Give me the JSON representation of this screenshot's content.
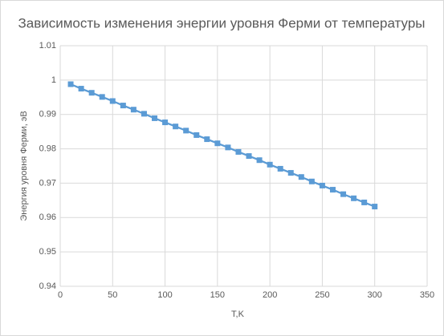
{
  "chart_data": {
    "type": "line",
    "title": "Зависимость изменения энергии уровня Ферми от температуры",
    "x_label": "T,K",
    "y_label": "Энергия уровня Ферми, эВ",
    "x": [
      10,
      20,
      30,
      40,
      50,
      60,
      70,
      80,
      90,
      100,
      110,
      120,
      130,
      140,
      150,
      160,
      170,
      180,
      190,
      200,
      210,
      220,
      230,
      240,
      250,
      260,
      270,
      280,
      290,
      300
    ],
    "values": [
      0.9988,
      0.9975,
      0.9963,
      0.9951,
      0.9939,
      0.9926,
      0.9914,
      0.9902,
      0.9889,
      0.9877,
      0.9865,
      0.9853,
      0.984,
      0.9828,
      0.9816,
      0.9804,
      0.9791,
      0.9779,
      0.9767,
      0.9754,
      0.9742,
      0.973,
      0.9718,
      0.9705,
      0.9693,
      0.9681,
      0.9668,
      0.9656,
      0.9644,
      0.9632
    ],
    "color": "#5b9bd5",
    "xlim": [
      0,
      350
    ],
    "xticks": [
      0,
      50,
      100,
      150,
      200,
      250,
      300,
      350
    ],
    "ylim": [
      0.94,
      1.01
    ],
    "yticks": [
      0.94,
      0.95,
      0.96,
      0.97,
      0.98,
      0.99,
      1,
      1.01
    ],
    "grid": true
  }
}
